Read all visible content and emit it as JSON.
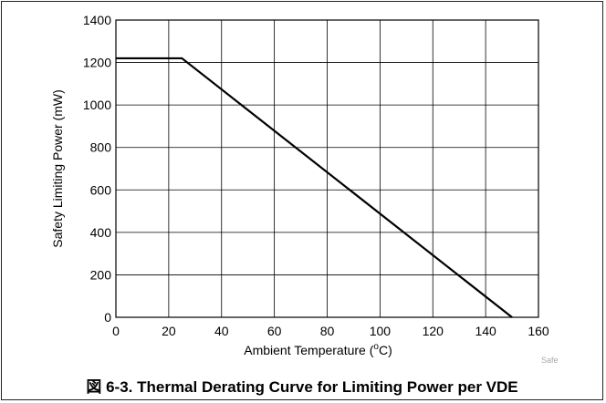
{
  "caption": "図 6-3. Thermal Derating Curve for Limiting Power per VDE",
  "watermark": "Safe",
  "chart_data": {
    "type": "line",
    "title": "",
    "xlabel_main": "Ambient Temperature (",
    "xlabel_sup": "o",
    "xlabel_tail": "C)",
    "ylabel": "Safety Limiting Power (mW)",
    "xlim": [
      0,
      160
    ],
    "ylim": [
      0,
      1400
    ],
    "x_ticks": [
      0,
      20,
      40,
      60,
      80,
      100,
      120,
      140,
      160
    ],
    "y_ticks": [
      0,
      200,
      400,
      600,
      800,
      1000,
      1200,
      1400
    ],
    "grid": true,
    "series": [
      {
        "x": [
          0,
          25,
          150
        ],
        "y": [
          1220,
          1220,
          0
        ],
        "color": "#000000"
      }
    ]
  }
}
